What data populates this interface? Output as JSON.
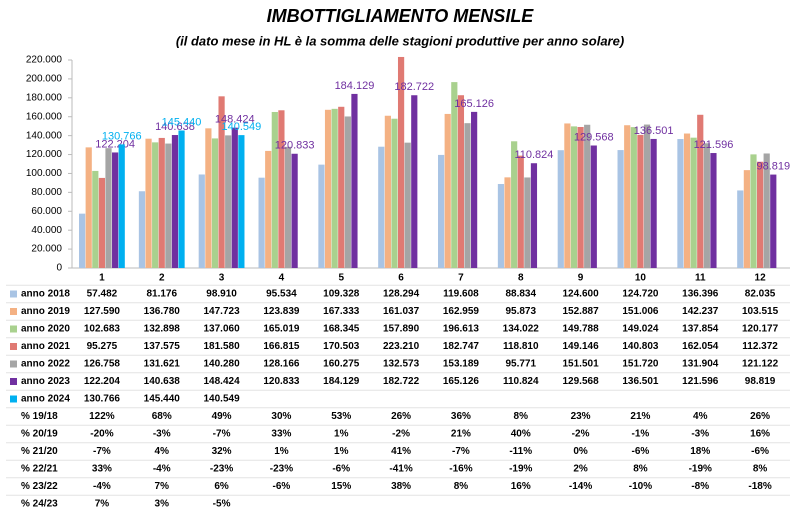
{
  "chart_data": {
    "type": "bar",
    "title": "IMBOTTIGLIAMENTO MENSILE",
    "subtitle": "(il dato mese in HL è la somma delle stagioni produttive per anno solare)",
    "categories": [
      "1",
      "2",
      "3",
      "4",
      "5",
      "6",
      "7",
      "8",
      "9",
      "10",
      "11",
      "12"
    ],
    "ylim": [
      0,
      220000
    ],
    "yticks": [
      0,
      {
        "value": 20000,
        "label": "20.000"
      },
      {
        "value": 40000,
        "label": "40.000"
      },
      {
        "value": 60000,
        "label": "60.000"
      },
      {
        "value": 80000,
        "label": "80.000"
      },
      {
        "value": 100000,
        "label": "100.000"
      },
      {
        "value": 120000,
        "label": "120.000"
      },
      {
        "value": 140000,
        "label": "140.000"
      },
      {
        "value": 160000,
        "label": "160.000"
      },
      {
        "value": 180000,
        "label": "180.000"
      },
      {
        "value": 200000,
        "label": "200.000"
      },
      {
        "value": 220000,
        "label": "220.000"
      }
    ],
    "grid": false,
    "series": [
      {
        "name": "anno 2018",
        "color": "#a9c4e4",
        "data_labels": false,
        "values": [
          57482,
          81176,
          98910,
          95534,
          109328,
          128294,
          119608,
          88834,
          124600,
          124720,
          136396,
          82035
        ],
        "value_labels": [
          "57.482",
          "81.176",
          "98.910",
          "95.534",
          "109.328",
          "128.294",
          "119.608",
          "88.834",
          "124.600",
          "124.720",
          "136.396",
          "82.035"
        ]
      },
      {
        "name": "anno 2019",
        "color": "#f4b183",
        "data_labels": false,
        "values": [
          127590,
          136780,
          147723,
          123839,
          167333,
          161037,
          162959,
          95873,
          152887,
          151006,
          142237,
          103515
        ],
        "value_labels": [
          "127.590",
          "136.780",
          "147.723",
          "123.839",
          "167.333",
          "161.037",
          "162.959",
          "95.873",
          "152.887",
          "151.006",
          "142.237",
          "103.515"
        ]
      },
      {
        "name": "anno 2020",
        "color": "#a9d18e",
        "data_labels": false,
        "values": [
          102683,
          132898,
          137060,
          165019,
          168345,
          157890,
          196613,
          134022,
          149788,
          149024,
          137854,
          120177
        ],
        "value_labels": [
          "102.683",
          "132.898",
          "137.060",
          "165.019",
          "168.345",
          "157.890",
          "196.613",
          "134.022",
          "149.788",
          "149.024",
          "137.854",
          "120.177"
        ]
      },
      {
        "name": "anno 2021",
        "color": "#e07a73",
        "data_labels": false,
        "values": [
          95275,
          137575,
          181580,
          166815,
          170503,
          223210,
          182747,
          118810,
          149146,
          140803,
          162054,
          112372
        ],
        "value_labels": [
          "95.275",
          "137.575",
          "181.580",
          "166.815",
          "170.503",
          "223.210",
          "182.747",
          "118.810",
          "149.146",
          "140.803",
          "162.054",
          "112.372"
        ]
      },
      {
        "name": "anno 2022",
        "color": "#a5a5a5",
        "data_labels": false,
        "values": [
          126758,
          131621,
          140280,
          128166,
          160275,
          132573,
          153189,
          95771,
          151501,
          151720,
          131904,
          121122
        ],
        "value_labels": [
          "126.758",
          "131.621",
          "140.280",
          "128.166",
          "160.275",
          "132.573",
          "153.189",
          "95.771",
          "151.501",
          "151.720",
          "131.904",
          "121.122"
        ]
      },
      {
        "name": "anno 2023",
        "color": "#7030a0",
        "data_labels": true,
        "values": [
          122204,
          140638,
          148424,
          120833,
          184129,
          182722,
          165126,
          110824,
          129568,
          136501,
          121596,
          98819
        ],
        "value_labels": [
          "122.204",
          "140.638",
          "148.424",
          "120.833",
          "184.129",
          "182.722",
          "165.126",
          "110.824",
          "129.568",
          "136.501",
          "121.596",
          "98.819"
        ]
      },
      {
        "name": "anno 2024",
        "color": "#00b0f0",
        "data_labels": true,
        "values": [
          130766,
          145440,
          140549,
          null,
          null,
          null,
          null,
          null,
          null,
          null,
          null,
          null
        ],
        "value_labels": [
          "130.766",
          "145.440",
          "140.549",
          null,
          null,
          null,
          null,
          null,
          null,
          null,
          null,
          null
        ]
      }
    ],
    "percent_rows": [
      {
        "name": "% 19/18",
        "values": [
          "122%",
          "68%",
          "49%",
          "30%",
          "53%",
          "26%",
          "36%",
          "8%",
          "23%",
          "21%",
          "4%",
          "26%"
        ]
      },
      {
        "name": "% 20/19",
        "values": [
          "-20%",
          "-3%",
          "-7%",
          "33%",
          "1%",
          "-2%",
          "21%",
          "40%",
          "-2%",
          "-1%",
          "-3%",
          "16%"
        ]
      },
      {
        "name": "% 21/20",
        "values": [
          "-7%",
          "4%",
          "32%",
          "1%",
          "1%",
          "41%",
          "-7%",
          "-11%",
          "0%",
          "-6%",
          "18%",
          "-6%"
        ]
      },
      {
        "name": "% 22/21",
        "values": [
          "33%",
          "-4%",
          "-23%",
          "-23%",
          "-6%",
          "-41%",
          "-16%",
          "-19%",
          "2%",
          "8%",
          "-19%",
          "8%"
        ]
      },
      {
        "name": "% 23/22",
        "values": [
          "-4%",
          "7%",
          "6%",
          "-6%",
          "15%",
          "38%",
          "8%",
          "16%",
          "-14%",
          "-10%",
          "-8%",
          "-18%"
        ]
      },
      {
        "name": "% 24/23",
        "values": [
          "7%",
          "3%",
          "-5%",
          null,
          null,
          null,
          null,
          null,
          null,
          null,
          null,
          null
        ]
      }
    ]
  }
}
